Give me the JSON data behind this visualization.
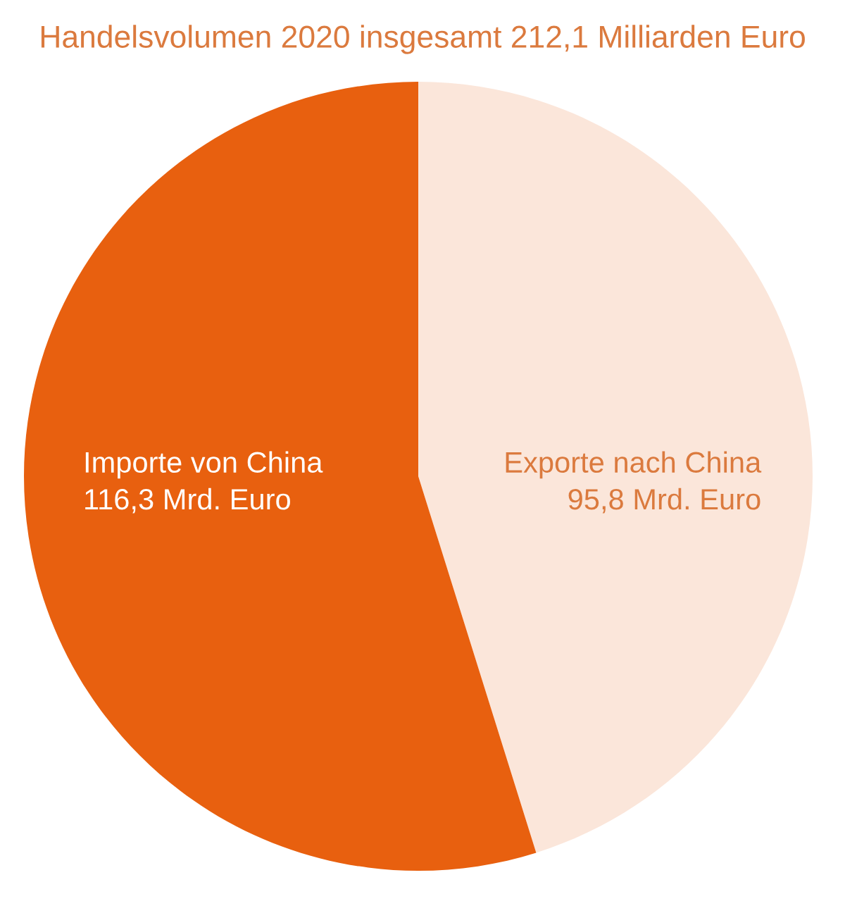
{
  "chart_data": {
    "type": "pie",
    "title": "Handelsvolumen 2020 insgesamt 212,1 Milliarden Euro",
    "categories": [
      "Exporte nach China",
      "Importe von China"
    ],
    "values": [
      95.8,
      116.3
    ],
    "colors": [
      "#fbe6da",
      "#e8600f"
    ],
    "value_labels": [
      "95,8 Mrd. Euro",
      "116,3 Mrd. Euro"
    ]
  }
}
